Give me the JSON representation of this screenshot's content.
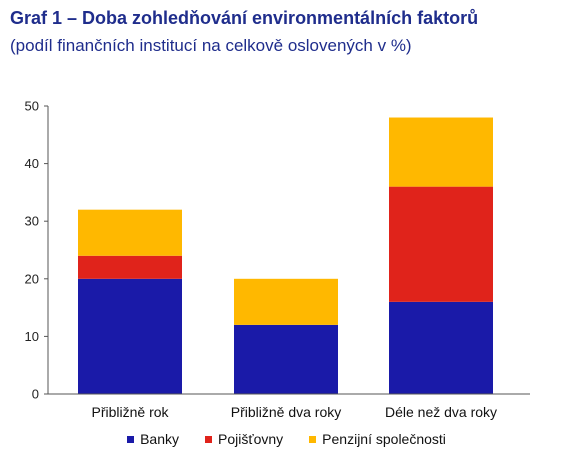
{
  "title": "Graf 1 – Doba zohledňování environmentálních faktorů",
  "subtitle": "(podíl finančních institucí na celkově oslovených v %)",
  "chart_data": {
    "type": "bar",
    "stacked": true,
    "categories": [
      "Přibližně rok",
      "Přibližně dva roky",
      "Déle než dva roky"
    ],
    "series": [
      {
        "name": "Banky",
        "color": "#1a1aa8",
        "values": [
          20,
          12,
          16
        ]
      },
      {
        "name": "Pojišťovny",
        "color": "#e0231b",
        "values": [
          4,
          0,
          20
        ]
      },
      {
        "name": "Penzijní společnosti",
        "color": "#ffb800",
        "values": [
          8,
          8,
          12
        ]
      }
    ],
    "ylim": [
      0,
      50
    ],
    "yticks": [
      0,
      10,
      20,
      30,
      40,
      50
    ],
    "grid": false,
    "legend": "bottom"
  }
}
